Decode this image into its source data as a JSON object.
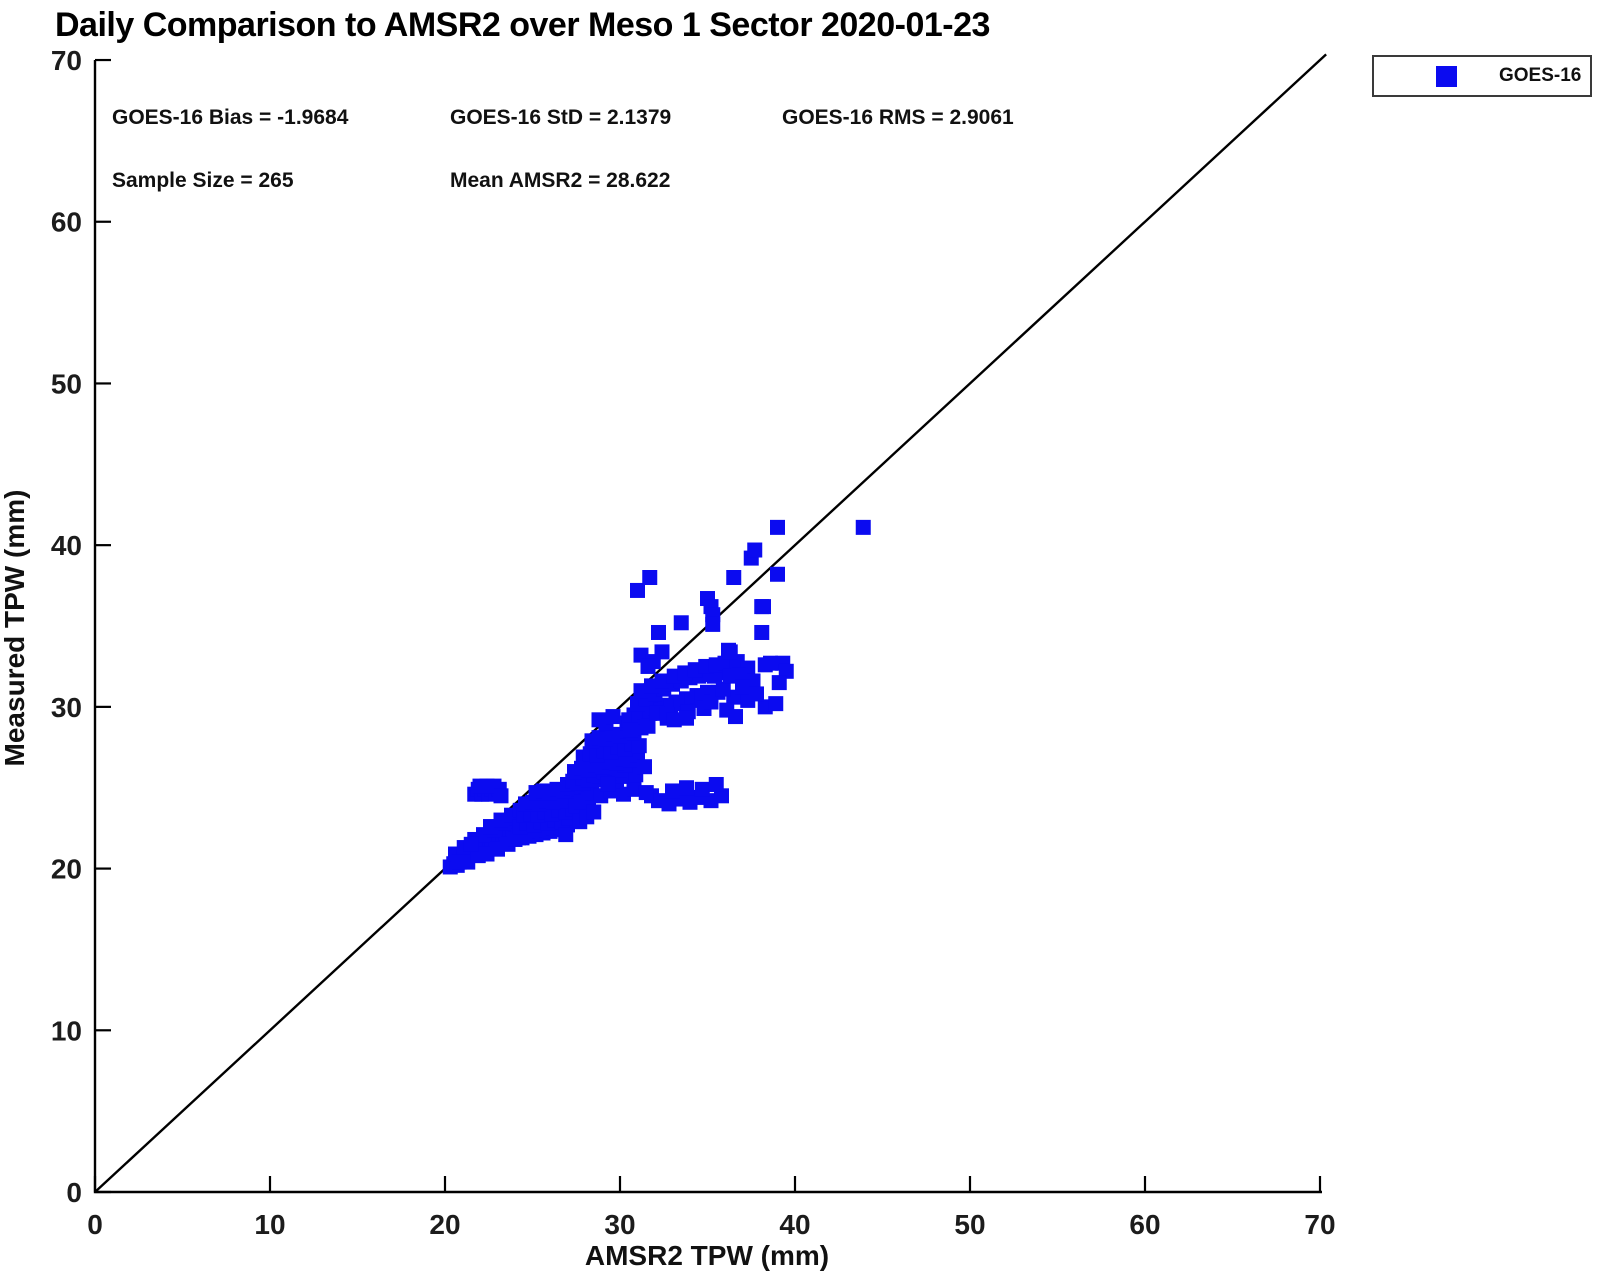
{
  "title": "Daily Comparison to AMSR2 over Meso 1 Sector 2020-01-23",
  "stats": {
    "bias": "GOES-16 Bias = -1.9684",
    "std": "GOES-16 StD = 2.1379",
    "rms": "GOES-16 RMS = 2.9061",
    "sample_size": "Sample Size = 265",
    "mean_amsr2": "Mean AMSR2 = 28.622"
  },
  "legend": {
    "entries": [
      {
        "label": "GOES-16",
        "marker": "square",
        "color": "#0b0bf0"
      }
    ]
  },
  "chart_data": {
    "type": "scatter",
    "title": "Daily Comparison to AMSR2 over Meso 1 Sector 2020-01-23",
    "xlabel": "AMSR2 TPW (mm)",
    "ylabel": "Measured TPW (mm)",
    "xlim": [
      0,
      70
    ],
    "ylim": [
      0,
      70
    ],
    "xticks": [
      0,
      10,
      20,
      30,
      40,
      50,
      60,
      70
    ],
    "yticks": [
      0,
      10,
      20,
      30,
      40,
      50,
      60,
      70
    ],
    "grid": false,
    "legend_position": "top-right-outside",
    "axis_color": "#000000",
    "tick_label_color": "#1c1c1c",
    "reference_line": {
      "from": [
        0,
        0
      ],
      "to": [
        70.35,
        70.35
      ],
      "color": "#000000"
    },
    "stats": {
      "bias": -1.9684,
      "std": 2.1379,
      "rms": 2.9061,
      "sample_size": 265,
      "mean_amsr2": 28.622
    },
    "series": [
      {
        "name": "GOES-16",
        "marker": "square",
        "color": "#0b0bf0",
        "marker_px": 15,
        "points": [
          [
            20.3,
            20.1
          ],
          [
            20.5,
            20.3
          ],
          [
            20.7,
            20.2
          ],
          [
            20.9,
            20.6
          ],
          [
            21.0,
            20.8
          ],
          [
            21.2,
            20.9
          ],
          [
            21.4,
            21.0
          ],
          [
            21.6,
            21.1
          ],
          [
            21.8,
            21.2
          ],
          [
            22.0,
            21.3
          ],
          [
            22.1,
            21.5
          ],
          [
            22.3,
            21.4
          ],
          [
            22.5,
            21.6
          ],
          [
            22.7,
            21.7
          ],
          [
            22.9,
            21.8
          ],
          [
            23.1,
            21.9
          ],
          [
            23.3,
            22.0
          ],
          [
            23.5,
            22.2
          ],
          [
            23.7,
            22.3
          ],
          [
            23.9,
            22.4
          ],
          [
            24.1,
            22.5
          ],
          [
            20.6,
            20.9
          ],
          [
            21.1,
            21.3
          ],
          [
            21.7,
            21.8
          ],
          [
            22.2,
            22.1
          ],
          [
            22.8,
            22.4
          ],
          [
            23.4,
            22.8
          ],
          [
            24.0,
            23.1
          ],
          [
            21.3,
            20.4
          ],
          [
            21.9,
            20.8
          ],
          [
            22.4,
            20.9
          ],
          [
            23.0,
            21.2
          ],
          [
            23.6,
            21.5
          ],
          [
            24.2,
            21.9
          ],
          [
            22.6,
            22.6
          ],
          [
            23.2,
            23.0
          ],
          [
            23.8,
            23.3
          ],
          [
            24.3,
            23.6
          ],
          [
            20.8,
            20.4
          ],
          [
            21.5,
            21.5
          ],
          [
            21.7,
            24.6
          ],
          [
            21.9,
            24.9
          ],
          [
            22.1,
            24.6
          ],
          [
            22.3,
            24.9
          ],
          [
            22.5,
            24.6
          ],
          [
            22.7,
            24.9
          ],
          [
            22.9,
            24.7
          ],
          [
            23.1,
            24.9
          ],
          [
            22.0,
            25.1
          ],
          [
            22.4,
            25.1
          ],
          [
            22.8,
            25.1
          ],
          [
            23.2,
            24.5
          ],
          [
            24.0,
            21.8
          ],
          [
            24.2,
            22.0
          ],
          [
            24.4,
            21.9
          ],
          [
            24.6,
            22.1
          ],
          [
            24.8,
            22.0
          ],
          [
            25.0,
            22.2
          ],
          [
            25.2,
            22.1
          ],
          [
            25.4,
            22.3
          ],
          [
            25.6,
            22.2
          ],
          [
            25.8,
            22.4
          ],
          [
            26.0,
            22.3
          ],
          [
            26.2,
            22.5
          ],
          [
            26.4,
            22.4
          ],
          [
            26.6,
            22.6
          ],
          [
            26.8,
            22.5
          ],
          [
            27.0,
            22.7
          ],
          [
            24.3,
            22.6
          ],
          [
            24.7,
            22.8
          ],
          [
            25.1,
            22.7
          ],
          [
            25.5,
            22.9
          ],
          [
            25.9,
            22.8
          ],
          [
            26.3,
            23.0
          ],
          [
            26.7,
            22.9
          ],
          [
            27.1,
            23.1
          ],
          [
            24.5,
            23.3
          ],
          [
            24.9,
            23.4
          ],
          [
            25.3,
            23.3
          ],
          [
            25.7,
            23.5
          ],
          [
            26.1,
            23.4
          ],
          [
            26.5,
            23.6
          ],
          [
            26.9,
            23.5
          ],
          [
            27.3,
            23.7
          ],
          [
            24.6,
            24.0
          ],
          [
            25.0,
            24.1
          ],
          [
            25.4,
            24.0
          ],
          [
            25.8,
            24.2
          ],
          [
            26.2,
            24.1
          ],
          [
            26.6,
            24.3
          ],
          [
            27.0,
            24.2
          ],
          [
            27.4,
            24.4
          ],
          [
            25.2,
            24.7
          ],
          [
            25.6,
            24.8
          ],
          [
            26.0,
            24.7
          ],
          [
            26.4,
            24.9
          ],
          [
            26.8,
            24.8
          ],
          [
            27.2,
            25.0
          ],
          [
            27.6,
            24.9
          ],
          [
            28.0,
            25.1
          ],
          [
            27.5,
            23.9
          ],
          [
            27.8,
            24.1
          ],
          [
            28.2,
            24.3
          ],
          [
            28.4,
            24.7
          ],
          [
            27.7,
            22.9
          ],
          [
            28.1,
            23.2
          ],
          [
            28.5,
            23.5
          ],
          [
            26.9,
            22.1
          ],
          [
            27.9,
            25.3
          ],
          [
            28.3,
            25.5
          ],
          [
            31.8,
            24.5
          ],
          [
            32.2,
            24.2
          ],
          [
            32.8,
            24.0
          ],
          [
            33.4,
            24.3
          ],
          [
            34.0,
            24.1
          ],
          [
            34.6,
            24.4
          ],
          [
            35.2,
            24.2
          ],
          [
            35.8,
            24.5
          ],
          [
            33.0,
            24.8
          ],
          [
            33.8,
            25.0
          ],
          [
            34.7,
            24.9
          ],
          [
            35.5,
            25.2
          ],
          [
            28.9,
            24.5
          ],
          [
            29.5,
            24.8
          ],
          [
            30.2,
            24.6
          ],
          [
            30.8,
            24.9
          ],
          [
            31.5,
            24.7
          ],
          [
            29.0,
            25.5
          ],
          [
            29.8,
            25.4
          ],
          [
            30.1,
            25.7
          ],
          [
            30.9,
            25.8
          ],
          [
            27.0,
            25.2
          ],
          [
            27.3,
            25.4
          ],
          [
            27.6,
            25.3
          ],
          [
            27.9,
            25.6
          ],
          [
            28.2,
            25.5
          ],
          [
            28.5,
            25.8
          ],
          [
            28.8,
            25.7
          ],
          [
            29.1,
            26.0
          ],
          [
            29.4,
            25.9
          ],
          [
            29.7,
            26.2
          ],
          [
            30.0,
            26.1
          ],
          [
            30.3,
            26.4
          ],
          [
            27.4,
            26.0
          ],
          [
            27.8,
            26.2
          ],
          [
            28.2,
            26.1
          ],
          [
            28.6,
            26.4
          ],
          [
            29.0,
            26.3
          ],
          [
            29.4,
            26.6
          ],
          [
            29.8,
            26.5
          ],
          [
            30.2,
            26.8
          ],
          [
            30.6,
            26.7
          ],
          [
            31.0,
            27.0
          ],
          [
            27.9,
            26.9
          ],
          [
            28.3,
            27.1
          ],
          [
            28.7,
            27.0
          ],
          [
            29.1,
            27.3
          ],
          [
            29.5,
            27.2
          ],
          [
            29.9,
            27.5
          ],
          [
            30.3,
            27.4
          ],
          [
            30.7,
            27.7
          ],
          [
            31.1,
            27.6
          ],
          [
            28.4,
            27.9
          ],
          [
            28.8,
            28.1
          ],
          [
            29.2,
            28.0
          ],
          [
            29.6,
            28.3
          ],
          [
            30.0,
            28.2
          ],
          [
            30.4,
            28.5
          ],
          [
            30.8,
            28.4
          ],
          [
            31.2,
            28.7
          ],
          [
            31.4,
            26.3
          ],
          [
            29.3,
            25.2
          ],
          [
            28.8,
            29.2
          ],
          [
            29.2,
            29.0
          ],
          [
            29.6,
            29.4
          ],
          [
            30.4,
            29.0
          ],
          [
            30.5,
            29.2
          ],
          [
            30.8,
            29.5
          ],
          [
            31.1,
            29.4
          ],
          [
            31.4,
            29.7
          ],
          [
            31.7,
            29.6
          ],
          [
            32.0,
            29.9
          ],
          [
            32.3,
            29.8
          ],
          [
            32.6,
            30.1
          ],
          [
            32.9,
            30.0
          ],
          [
            33.2,
            30.3
          ],
          [
            33.5,
            30.2
          ],
          [
            33.8,
            30.5
          ],
          [
            34.1,
            30.4
          ],
          [
            34.4,
            30.7
          ],
          [
            34.7,
            30.6
          ],
          [
            35.0,
            30.9
          ],
          [
            31.0,
            30.2
          ],
          [
            31.5,
            30.5
          ],
          [
            32.0,
            30.8
          ],
          [
            32.5,
            31.1
          ],
          [
            33.0,
            31.4
          ],
          [
            33.5,
            31.6
          ],
          [
            34.0,
            31.8
          ],
          [
            34.5,
            31.9
          ],
          [
            35.0,
            32.0
          ],
          [
            35.4,
            31.9
          ],
          [
            35.8,
            32.1
          ],
          [
            31.2,
            31.0
          ],
          [
            31.8,
            31.3
          ],
          [
            32.4,
            31.6
          ],
          [
            33.1,
            31.9
          ],
          [
            33.7,
            32.1
          ],
          [
            34.3,
            32.3
          ],
          [
            34.9,
            32.5
          ],
          [
            35.5,
            32.6
          ],
          [
            36.0,
            32.7
          ],
          [
            30.6,
            28.6
          ],
          [
            31.6,
            28.8
          ],
          [
            32.7,
            29.3
          ],
          [
            33.9,
            29.7
          ],
          [
            34.8,
            29.9
          ],
          [
            35.2,
            30.3
          ],
          [
            32.1,
            29.6
          ],
          [
            32.7,
            29.5
          ],
          [
            33.1,
            29.2
          ],
          [
            33.8,
            29.3
          ],
          [
            36.2,
            33.5
          ],
          [
            36.7,
            32.8
          ],
          [
            37.3,
            32.4
          ],
          [
            38.3,
            32.6
          ],
          [
            39.3,
            32.7
          ],
          [
            39.5,
            32.2
          ],
          [
            36.5,
            30.6
          ],
          [
            37.3,
            30.4
          ],
          [
            38.3,
            30.0
          ],
          [
            35.6,
            30.9
          ],
          [
            35.9,
            31.1
          ],
          [
            37.6,
            31.6
          ],
          [
            36.3,
            31.9
          ],
          [
            36.8,
            32.0
          ],
          [
            37.0,
            31.2
          ],
          [
            37.8,
            30.8
          ],
          [
            38.9,
            30.2
          ],
          [
            39.1,
            31.5
          ],
          [
            36.1,
            29.8
          ],
          [
            36.6,
            29.4
          ],
          [
            31.0,
            37.2
          ],
          [
            31.7,
            38.0
          ],
          [
            32.2,
            34.6
          ],
          [
            32.4,
            33.4
          ],
          [
            31.2,
            33.2
          ],
          [
            31.9,
            32.8
          ],
          [
            31.6,
            32.5
          ],
          [
            33.5,
            35.2
          ],
          [
            35.0,
            36.7
          ],
          [
            35.2,
            36.2
          ],
          [
            35.3,
            35.7
          ],
          [
            35.3,
            35.1
          ],
          [
            36.3,
            33.4
          ],
          [
            36.5,
            38.0
          ],
          [
            37.5,
            39.2
          ],
          [
            37.7,
            39.7
          ],
          [
            38.1,
            36.2
          ],
          [
            38.1,
            34.6
          ],
          [
            38.2,
            36.2
          ],
          [
            38.6,
            32.7
          ],
          [
            39.0,
            38.2
          ],
          [
            39.0,
            41.1
          ],
          [
            43.9,
            41.1
          ]
        ]
      }
    ]
  }
}
